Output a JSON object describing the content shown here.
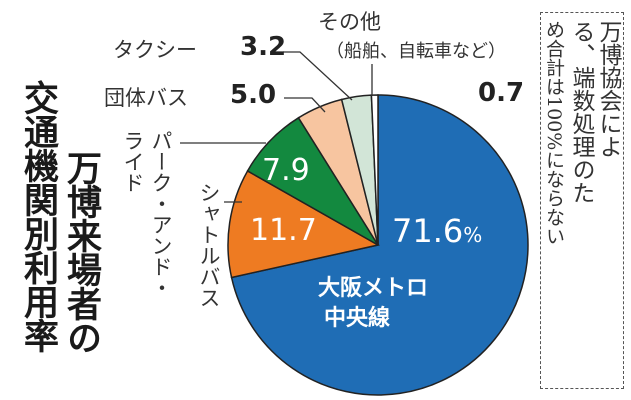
{
  "chart_data": {
    "type": "pie",
    "title_lines": [
      "万博来場者の",
      "交通機関別利用率"
    ],
    "unit": "%",
    "start": "top",
    "direction": "clockwise",
    "slices": [
      {
        "label_lines": [
          "大阪メトロ",
          "中央線"
        ],
        "value": 71.6,
        "value_text": "71.6",
        "color": "#1f6db5"
      },
      {
        "label_lines": [
          "シャトルバス"
        ],
        "value": 11.7,
        "value_text": "11.7",
        "color": "#ee7b22"
      },
      {
        "label_lines": [
          "パーク・アンド・",
          "ライド"
        ],
        "value": 7.9,
        "value_text": "7.9",
        "color": "#13893f"
      },
      {
        "label_lines": [
          "団体バス"
        ],
        "value": 5.0,
        "value_text": "5.0",
        "color": "#f7c5a0"
      },
      {
        "label_lines": [
          "タクシー"
        ],
        "value": 3.2,
        "value_text": "3.2",
        "color": "#d2e5d7"
      },
      {
        "label_lines": [
          "その他",
          "（船舶、自転車など）"
        ],
        "value": 0.7,
        "value_text": "0.7",
        "color": "#ffffff"
      }
    ],
    "note_lines": [
      "万博協会によ",
      "る、端数処理のた",
      "め合計は100%になら",
      "ない"
    ]
  }
}
